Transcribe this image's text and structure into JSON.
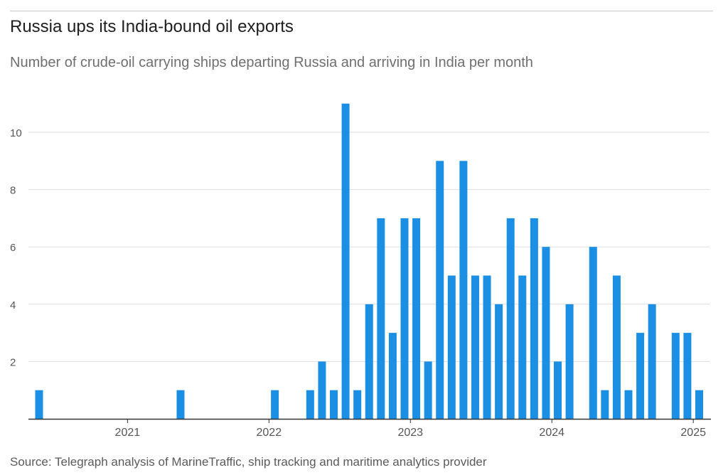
{
  "title": "Russia ups its India-bound oil exports",
  "subtitle": "Number of crude-oil carrying ships departing Russia and arriving in India per month",
  "source": "Source: Telegraph analysis of MarineTraffic, ship tracking and maritime analytics provider",
  "colors": {
    "bar": "#1a8fe3",
    "grid": "#dddddd",
    "axis": "#333333",
    "tick_text": "#555555"
  },
  "chart_data": {
    "type": "bar",
    "title": "Russia ups its India-bound oil exports",
    "subtitle": "Number of crude-oil carrying ships departing Russia and arriving in India per month",
    "xlabel": "",
    "ylabel": "",
    "x_tick_labels": [
      "2021",
      "2022",
      "2023",
      "2024",
      "2025"
    ],
    "y_ticks": [
      2,
      4,
      6,
      8,
      10
    ],
    "ylim": [
      0,
      11
    ],
    "xlim": [
      "2020-05",
      "2025-02"
    ],
    "grid": "horizontal",
    "legend": "none",
    "data": [
      {
        "month": "2020-05",
        "value": 1
      },
      {
        "month": "2021-05",
        "value": 1
      },
      {
        "month": "2022-01",
        "value": 1
      },
      {
        "month": "2022-04",
        "value": 1
      },
      {
        "month": "2022-05",
        "value": 2
      },
      {
        "month": "2022-06",
        "value": 1
      },
      {
        "month": "2022-07",
        "value": 11
      },
      {
        "month": "2022-08",
        "value": 1
      },
      {
        "month": "2022-09",
        "value": 4
      },
      {
        "month": "2022-10",
        "value": 7
      },
      {
        "month": "2022-11",
        "value": 3
      },
      {
        "month": "2022-12",
        "value": 7
      },
      {
        "month": "2023-01",
        "value": 7
      },
      {
        "month": "2023-02",
        "value": 2
      },
      {
        "month": "2023-03",
        "value": 9
      },
      {
        "month": "2023-04",
        "value": 5
      },
      {
        "month": "2023-05",
        "value": 9
      },
      {
        "month": "2023-06",
        "value": 5
      },
      {
        "month": "2023-07",
        "value": 5
      },
      {
        "month": "2023-08",
        "value": 4
      },
      {
        "month": "2023-09",
        "value": 7
      },
      {
        "month": "2023-10",
        "value": 5
      },
      {
        "month": "2023-11",
        "value": 7
      },
      {
        "month": "2023-12",
        "value": 6
      },
      {
        "month": "2024-01",
        "value": 2
      },
      {
        "month": "2024-02",
        "value": 4
      },
      {
        "month": "2024-04",
        "value": 6
      },
      {
        "month": "2024-05",
        "value": 1
      },
      {
        "month": "2024-06",
        "value": 5
      },
      {
        "month": "2024-07",
        "value": 1
      },
      {
        "month": "2024-08",
        "value": 3
      },
      {
        "month": "2024-09",
        "value": 4
      },
      {
        "month": "2024-11",
        "value": 3
      },
      {
        "month": "2024-12",
        "value": 3
      },
      {
        "month": "2025-01",
        "value": 1
      }
    ]
  }
}
